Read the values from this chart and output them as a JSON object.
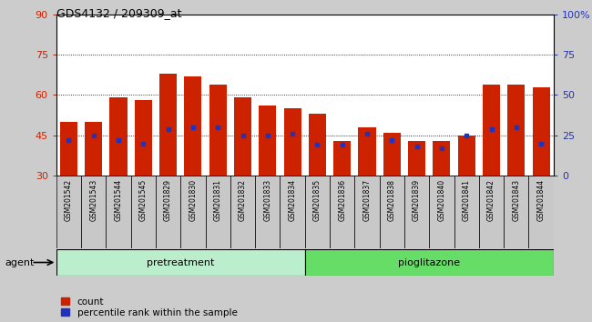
{
  "title": "GDS4132 / 209309_at",
  "samples": [
    "GSM201542",
    "GSM201543",
    "GSM201544",
    "GSM201545",
    "GSM201829",
    "GSM201830",
    "GSM201831",
    "GSM201832",
    "GSM201833",
    "GSM201834",
    "GSM201835",
    "GSM201836",
    "GSM201837",
    "GSM201838",
    "GSM201839",
    "GSM201840",
    "GSM201841",
    "GSM201842",
    "GSM201843",
    "GSM201844"
  ],
  "counts": [
    50,
    50,
    59,
    58,
    68,
    67,
    64,
    59,
    56,
    55,
    53,
    43,
    48,
    46,
    43,
    43,
    45,
    64,
    64,
    63
  ],
  "percentile_ranks": [
    22,
    25,
    22,
    20,
    29,
    30,
    30,
    25,
    25,
    26,
    19,
    19,
    26,
    22,
    18,
    17,
    25,
    29,
    30,
    20
  ],
  "bar_color": "#cc2200",
  "marker_color": "#2233bb",
  "ymin": 30,
  "ymax": 90,
  "yticks_left": [
    30,
    45,
    60,
    75,
    90
  ],
  "right_labels": [
    "0",
    "25",
    "50",
    "75",
    "100%"
  ],
  "grid_vals": [
    45,
    60,
    75
  ],
  "pretreatment_n": 10,
  "pioglitazone_n": 10,
  "group_pretreatment": "pretreatment",
  "group_pioglitazone": "pioglitazone",
  "agent_label": "agent",
  "legend_count_label": "count",
  "legend_pct_label": "percentile rank within the sample",
  "fig_bg": "#cccccc",
  "plot_bg": "#ffffff",
  "xtickcell_bg": "#c8c8c8",
  "pretreatment_color": "#bbeecc",
  "pioglitazone_color": "#66dd66"
}
